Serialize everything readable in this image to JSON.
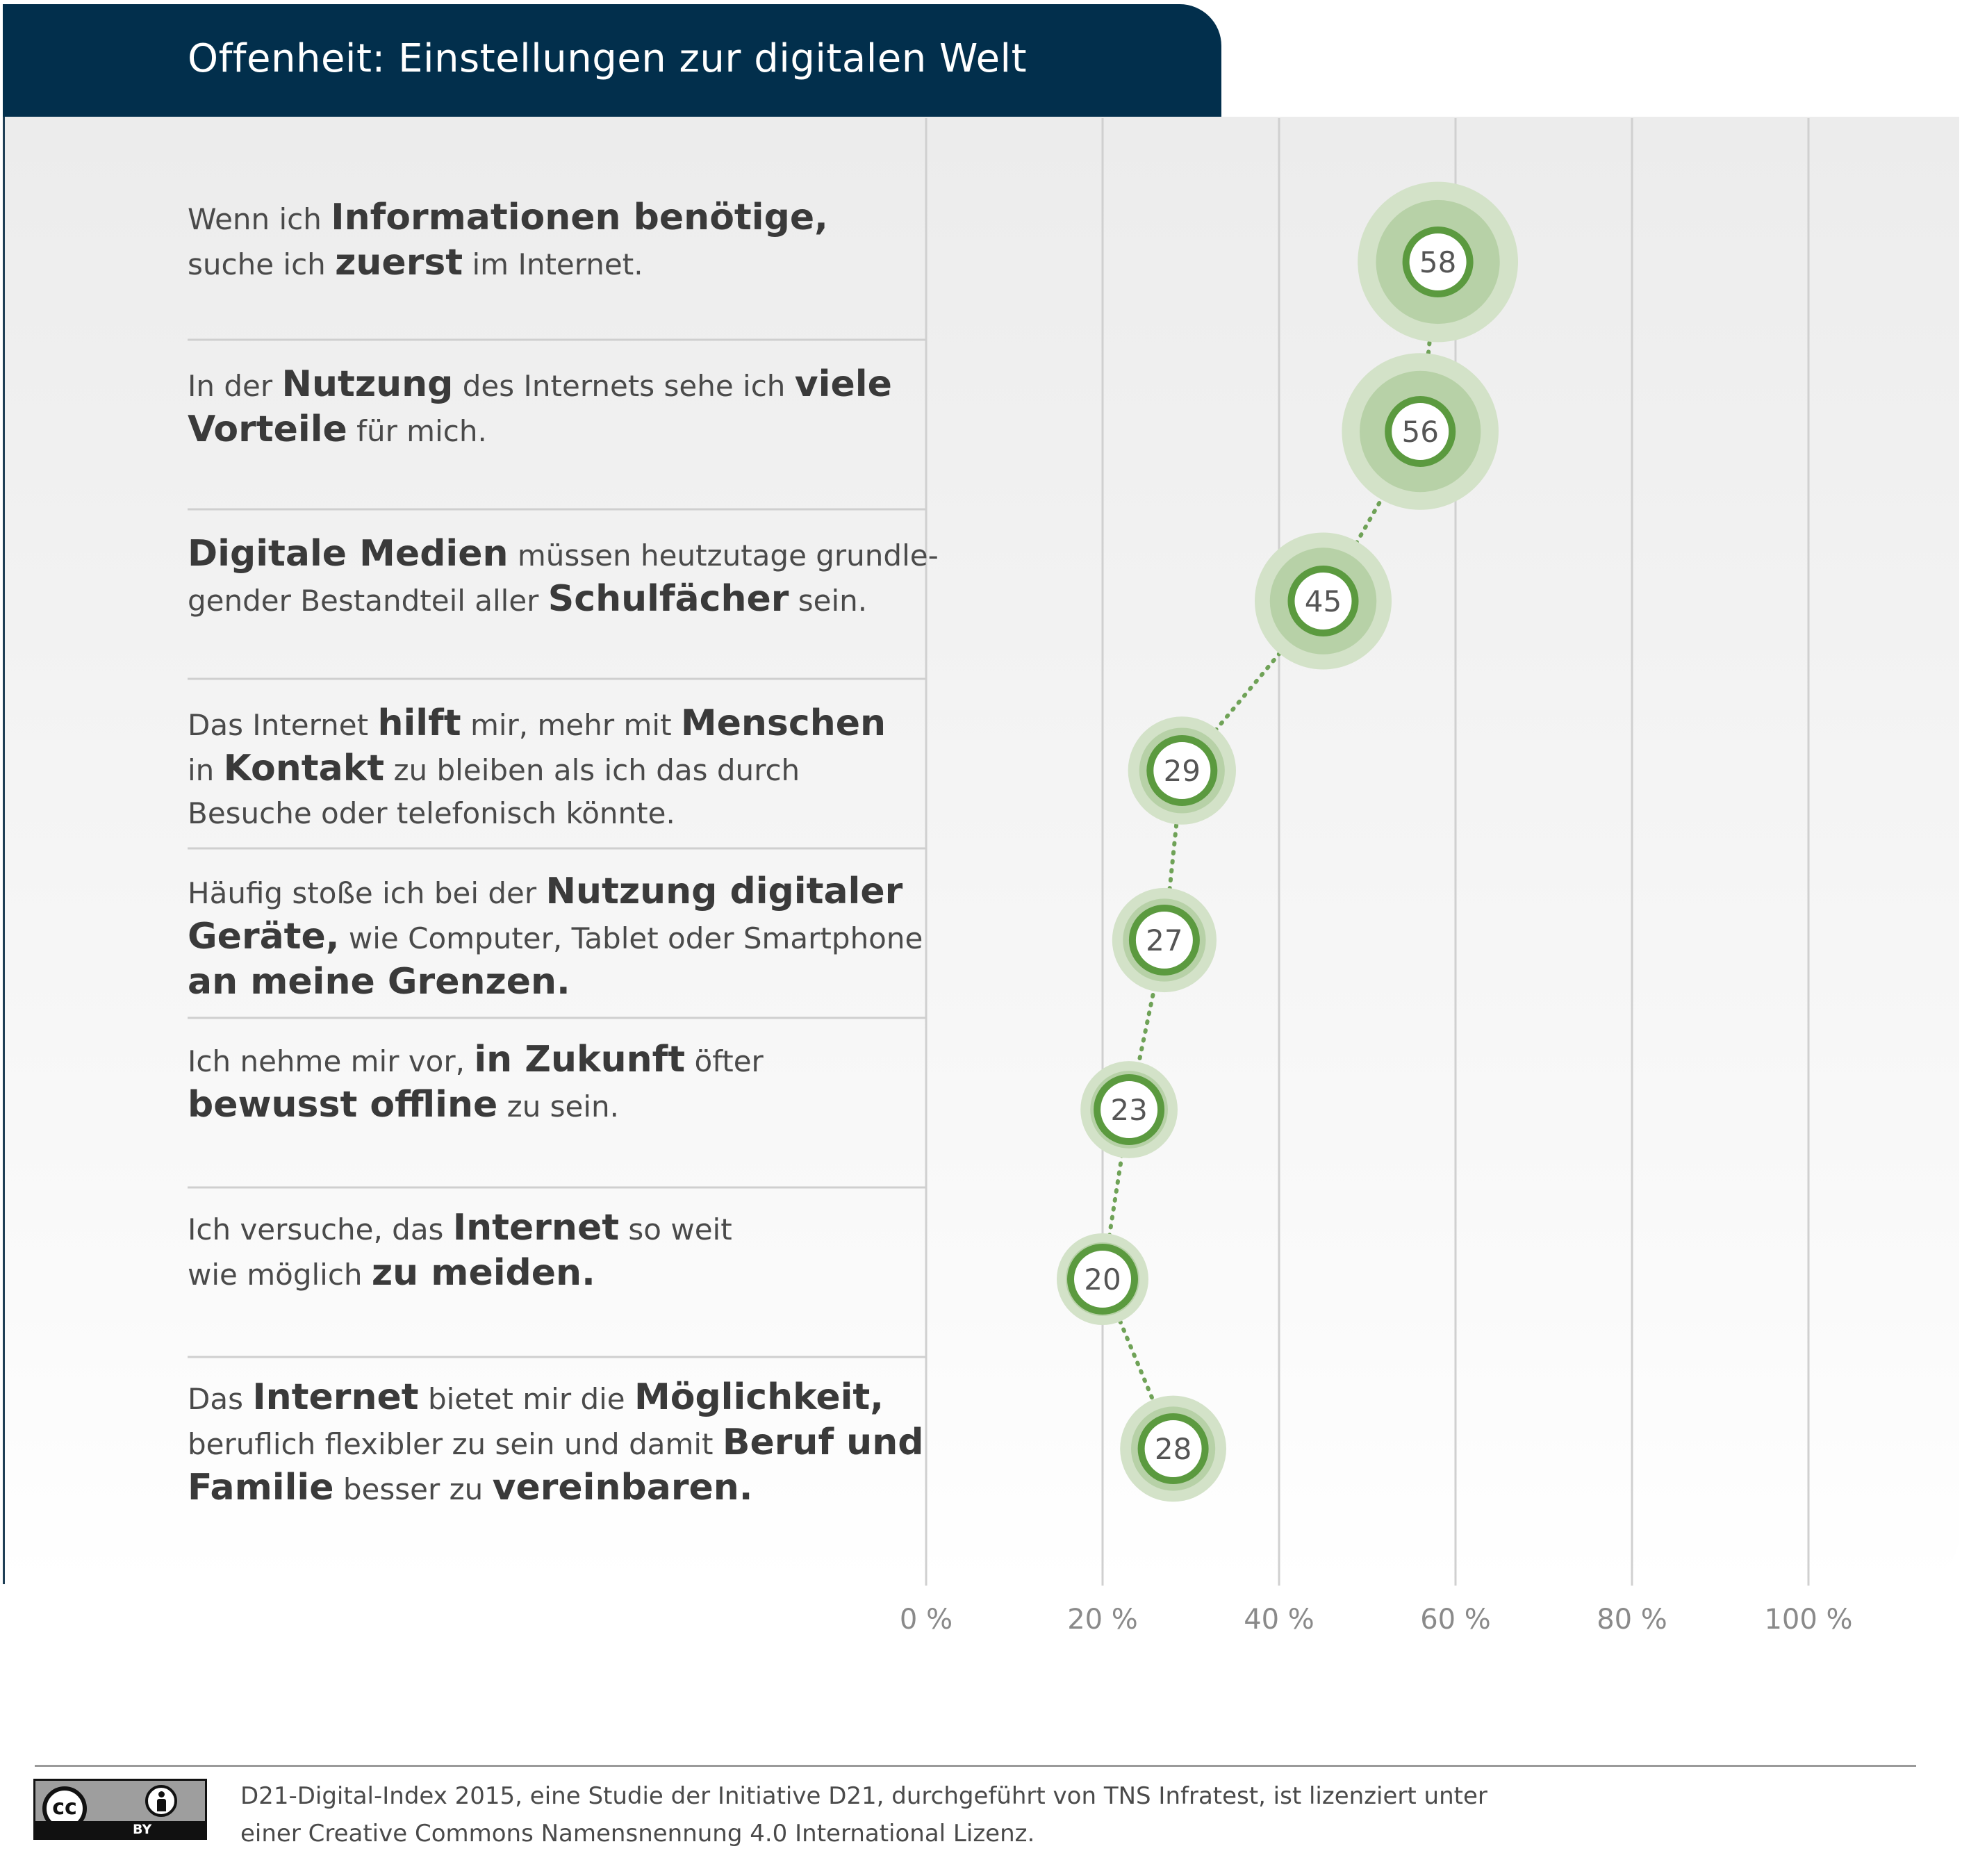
{
  "title": "Offenheit: Einstellungen zur digitalen Welt",
  "statements": [
    {
      "lines": [
        [
          {
            "t": "Wenn ich ",
            "b": false
          },
          {
            "t": "Informationen benötige,",
            "b": true
          }
        ],
        [
          {
            "t": "suche ich ",
            "b": false
          },
          {
            "t": "zuerst",
            "b": true
          },
          {
            "t": " im Internet.",
            "b": false
          }
        ]
      ]
    },
    {
      "lines": [
        [
          {
            "t": "In der ",
            "b": false
          },
          {
            "t": "Nutzung",
            "b": true
          },
          {
            "t": " des Internets sehe ich ",
            "b": false
          },
          {
            "t": "viele",
            "b": true
          }
        ],
        [
          {
            "t": "Vorteile",
            "b": true
          },
          {
            "t": " für mich.",
            "b": false
          }
        ]
      ]
    },
    {
      "lines": [
        [
          {
            "t": "Digitale Medien",
            "b": true
          },
          {
            "t": " müssen heutzutage grundle-",
            "b": false
          }
        ],
        [
          {
            "t": "gender Bestandteil aller ",
            "b": false
          },
          {
            "t": "Schulfächer",
            "b": true
          },
          {
            "t": " sein.",
            "b": false
          }
        ]
      ]
    },
    {
      "lines": [
        [
          {
            "t": "Das Internet ",
            "b": false
          },
          {
            "t": "hilft",
            "b": true
          },
          {
            "t": " mir, mehr mit ",
            "b": false
          },
          {
            "t": "Menschen",
            "b": true
          }
        ],
        [
          {
            "t": "in ",
            "b": false
          },
          {
            "t": "Kontakt",
            "b": true
          },
          {
            "t": " zu bleiben als ich das durch",
            "b": false
          }
        ],
        [
          {
            "t": "Besuche oder telefonisch könnte.",
            "b": false
          }
        ]
      ]
    },
    {
      "lines": [
        [
          {
            "t": "Häufig stoße ich bei der ",
            "b": false
          },
          {
            "t": "Nutzung digitaler",
            "b": true
          }
        ],
        [
          {
            "t": "Geräte,",
            "b": true
          },
          {
            "t": " wie Computer, Tablet oder Smartphone",
            "b": false
          }
        ],
        [
          {
            "t": "an meine Grenzen.",
            "b": true
          }
        ]
      ]
    },
    {
      "lines": [
        [
          {
            "t": "Ich nehme mir vor, ",
            "b": false
          },
          {
            "t": "in Zukunft",
            "b": true
          },
          {
            "t": " öfter",
            "b": false
          }
        ],
        [
          {
            "t": "bewusst offline",
            "b": true
          },
          {
            "t": " zu sein.",
            "b": false
          }
        ]
      ]
    },
    {
      "lines": [
        [
          {
            "t": "Ich versuche, das ",
            "b": false
          },
          {
            "t": "Internet",
            "b": true
          },
          {
            "t": " so weit",
            "b": false
          }
        ],
        [
          {
            "t": "wie möglich ",
            "b": false
          },
          {
            "t": "zu meiden.",
            "b": true
          }
        ]
      ]
    },
    {
      "lines": [
        [
          {
            "t": "Das ",
            "b": false
          },
          {
            "t": "Internet",
            "b": true
          },
          {
            "t": " bietet mir die ",
            "b": false
          },
          {
            "t": "Möglichkeit,",
            "b": true
          }
        ],
        [
          {
            "t": "beruflich flexibler zu sein und damit ",
            "b": false
          },
          {
            "t": "Beruf und",
            "b": true
          }
        ],
        [
          {
            "t": "Familie",
            "b": true
          },
          {
            "t": " besser zu ",
            "b": false
          },
          {
            "t": "vereinbaren.",
            "b": true
          }
        ]
      ]
    }
  ],
  "chart_data": {
    "type": "scatter",
    "title": "Offenheit: Einstellungen zur digitalen Welt",
    "xlabel": "",
    "ylabel": "",
    "xlim": [
      0,
      100
    ],
    "x_ticks": [
      0,
      20,
      40,
      60,
      80,
      100
    ],
    "x_tick_labels": [
      "0 %",
      "20 %",
      "40 %",
      "60 %",
      "80 %",
      "100 %"
    ],
    "grid": "vertical",
    "connector": "dotted",
    "categories": [
      "Wenn ich Informationen benötige, suche ich zuerst im Internet.",
      "In der Nutzung des Internets sehe ich viele Vorteile für mich.",
      "Digitale Medien müssen heutzutage grundlegender Bestandteil aller Schulfächer sein.",
      "Das Internet hilft mir, mehr mit Menschen in Kontakt zu bleiben als ich das durch Besuche oder telefonisch könnte.",
      "Häufig stoße ich bei der Nutzung digitaler Geräte, wie Computer, Tablet oder Smartphone an meine Grenzen.",
      "Ich nehme mir vor, in Zukunft öfter bewusst offline zu sein.",
      "Ich versuche, das Internet so weit wie möglich zu meiden.",
      "Das Internet bietet mir die Möglichkeit, beruflich flexibler zu sein und damit Beruf und Familie besser zu vereinbaren."
    ],
    "values": [
      58,
      56,
      45,
      29,
      27,
      23,
      20,
      28
    ],
    "value_labels": [
      "58",
      "56",
      "45",
      "29",
      "27",
      "23",
      "20",
      "28"
    ],
    "colors": {
      "ring": "#5b9a3f",
      "halo_inner": "#b7d1a7",
      "halo_outer": "#d3e2c8",
      "connector": "#6fa257",
      "grid": "#d0d0d0",
      "tick_label": "#8a8a8a"
    }
  },
  "footer": {
    "cc_label": "cc",
    "by_label": "BY",
    "line1": "D21-Digital-Index 2015, eine Studie der Initiative D21, durchgeführt von TNS Infratest, ist lizenziert unter",
    "line2": "einer Creative Commons Namensnennung 4.0 International Lizenz."
  }
}
